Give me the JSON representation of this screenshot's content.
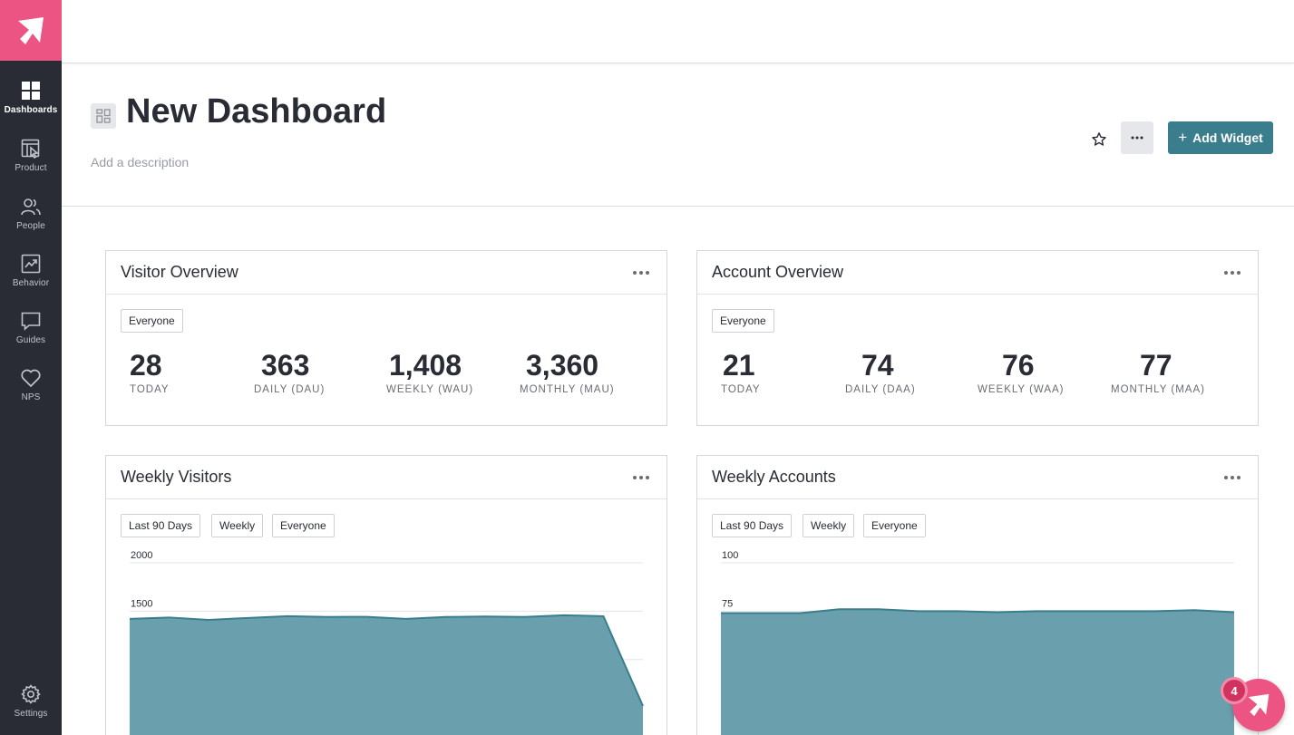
{
  "sidebar": {
    "items": [
      {
        "label": "Dashboards",
        "icon": "dashboards-icon",
        "active": true
      },
      {
        "label": "Product",
        "icon": "product-icon"
      },
      {
        "label": "People",
        "icon": "people-icon"
      },
      {
        "label": "Behavior",
        "icon": "behavior-icon"
      },
      {
        "label": "Guides",
        "icon": "guides-icon"
      },
      {
        "label": "NPS",
        "icon": "nps-icon"
      }
    ],
    "settings_label": "Settings"
  },
  "header": {
    "title": "New Dashboard",
    "description_placeholder": "Add a description",
    "add_widget_label": "Add Widget",
    "add_widget_plus": "+"
  },
  "colors": {
    "brand": "#ec5483",
    "sidebar_bg": "#2a2c35",
    "accent": "#3a7d8c",
    "chart_fill": "#6aa0ad",
    "chart_line": "#3a7d8c"
  },
  "widgets": {
    "visitor_overview": {
      "title": "Visitor Overview",
      "segment": "Everyone",
      "stats": [
        {
          "value": "28",
          "label": "TODAY"
        },
        {
          "value": "363",
          "label": "DAILY (DAU)"
        },
        {
          "value": "1,408",
          "label": "WEEKLY (WAU)"
        },
        {
          "value": "3,360",
          "label": "MONTHLY (MAU)"
        }
      ]
    },
    "account_overview": {
      "title": "Account Overview",
      "segment": "Everyone",
      "stats": [
        {
          "value": "21",
          "label": "TODAY"
        },
        {
          "value": "74",
          "label": "DAILY (DAA)"
        },
        {
          "value": "76",
          "label": "WEEKLY (WAA)"
        },
        {
          "value": "77",
          "label": "MONTHLY (MAA)"
        }
      ]
    },
    "weekly_visitors": {
      "title": "Weekly Visitors",
      "filters": [
        "Last 90 Days",
        "Weekly",
        "Everyone"
      ]
    },
    "weekly_accounts": {
      "title": "Weekly Accounts",
      "filters": [
        "Last 90 Days",
        "Weekly",
        "Everyone"
      ]
    }
  },
  "chart_data": [
    {
      "type": "area",
      "title": "Weekly Visitors",
      "ylim": [
        0,
        2000
      ],
      "yticks": [
        500,
        1000,
        1500,
        2000
      ],
      "grid": true,
      "series": [
        {
          "values": [
            1420,
            1435,
            1410,
            1430,
            1448,
            1440,
            1442,
            1420,
            1440,
            1445,
            1440,
            1458,
            1448,
            520
          ]
        }
      ]
    },
    {
      "type": "area",
      "title": "Weekly Accounts",
      "ylim": [
        0,
        100
      ],
      "yticks": [
        25,
        50,
        75,
        100
      ],
      "grid": true,
      "series": [
        {
          "values": [
            74,
            74,
            74,
            76,
            76,
            75,
            75,
            74.5,
            75,
            75,
            75,
            75,
            75.5,
            74.5
          ]
        }
      ]
    }
  ],
  "resource_center": {
    "badge_count": "4"
  }
}
